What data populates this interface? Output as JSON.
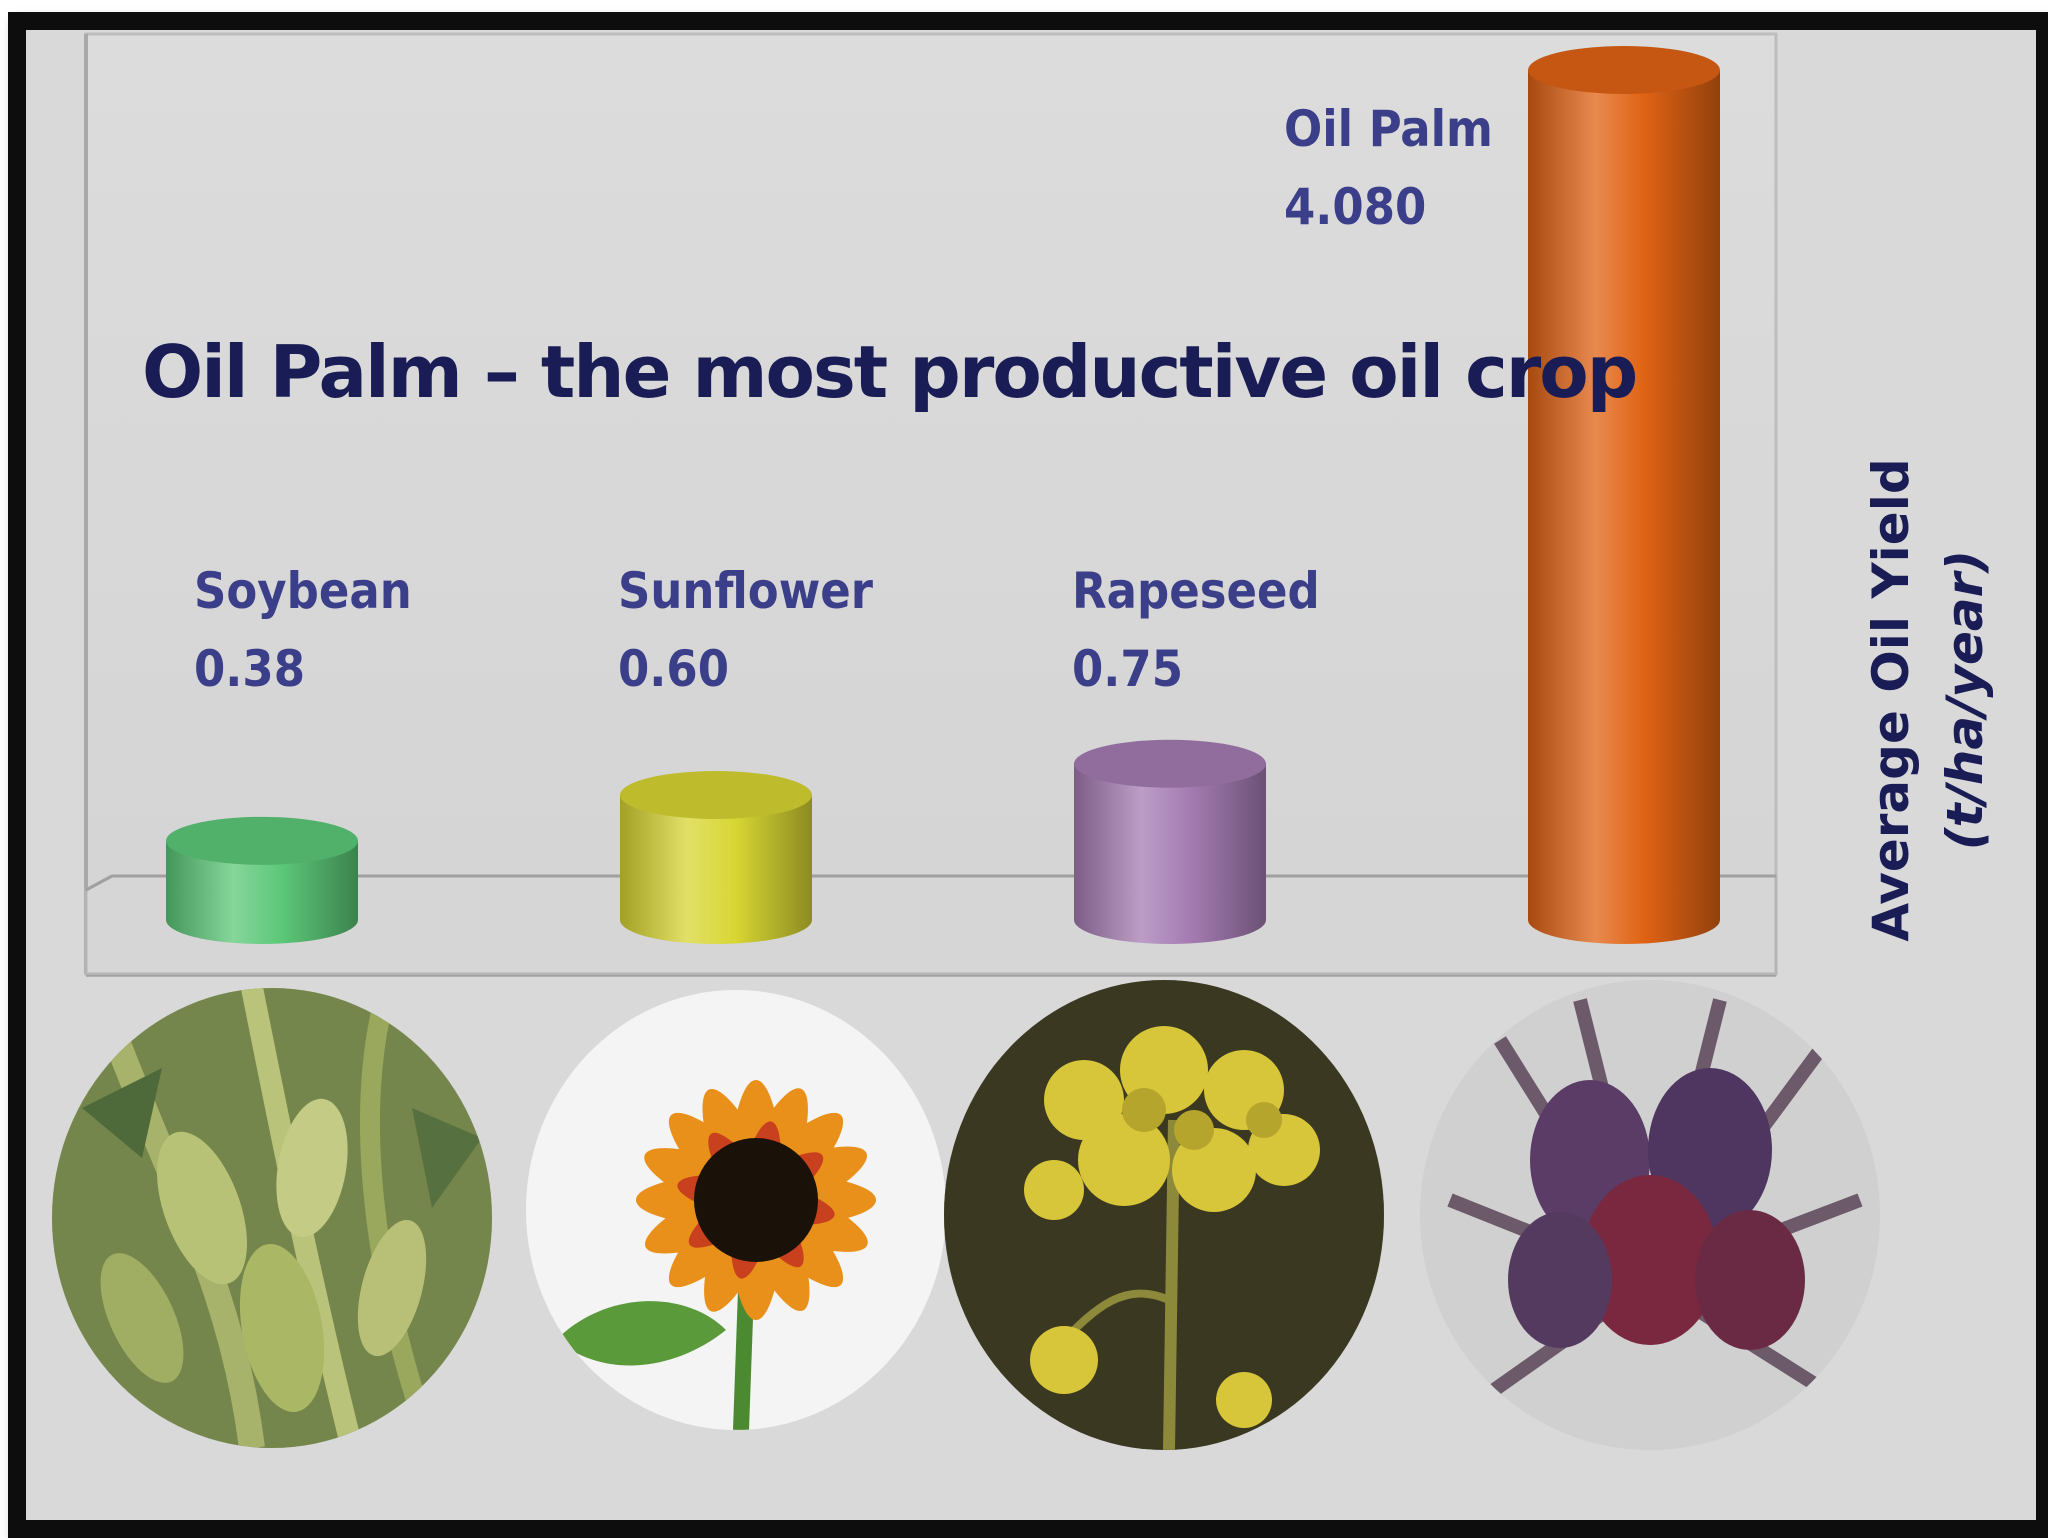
{
  "chart_data": {
    "type": "bar",
    "title": "Oil Palm – the most productive oil crop",
    "ylabel": "Average Oil Yield",
    "yunit": "(t/ha/year)",
    "categories": [
      "Soybean",
      "Sunflower",
      "Rapeseed",
      "Oil Palm"
    ],
    "values": [
      0.38,
      0.6,
      0.75,
      4.08
    ],
    "value_labels": [
      "0.38",
      "0.60",
      "0.75",
      "4.080"
    ],
    "ylim": [
      0,
      4.08
    ],
    "grid": false,
    "bar_style": "3d-cylinder",
    "colors": [
      "#5cc878",
      "#d8d633",
      "#a57cb3",
      "#e06314"
    ]
  },
  "photos": [
    {
      "icon": "soybean-plant-photo"
    },
    {
      "icon": "sunflower-photo"
    },
    {
      "icon": "rapeseed-flower-photo"
    },
    {
      "icon": "oil-palm-fruit-photo"
    }
  ],
  "colors": {
    "background": "#d9d9d9",
    "frame": "#0d0d0d",
    "title": "#1a1d55",
    "label": "#3b3e88"
  }
}
